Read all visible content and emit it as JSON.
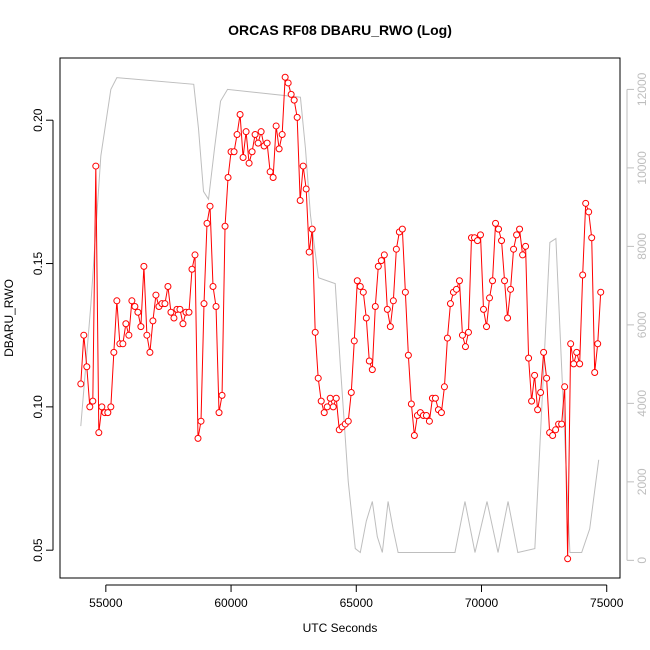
{
  "chart_data": {
    "type": "line",
    "title": "ORCAS RF08 DBARU_RWO (Log)",
    "x_label": "UTC Seconds",
    "y_label": "DBARU_RWO",
    "xlim": [
      53170,
      75530
    ],
    "ylim": [
      0.0403,
      0.2217
    ],
    "y2lim": [
      -450,
      12800
    ],
    "xticks": [
      55000,
      60000,
      65000,
      70000,
      75000
    ],
    "yticks": [
      {
        "value": 0.05,
        "label": "0.05"
      },
      {
        "value": 0.1,
        "label": "0.10"
      },
      {
        "value": 0.15,
        "label": "0.15"
      },
      {
        "value": 0.2,
        "label": "0.20"
      }
    ],
    "y2ticks": [
      0,
      2000,
      4000,
      6000,
      8000,
      10000,
      12000
    ],
    "series": [
      {
        "color": "#ff0000",
        "marker": "circle",
        "x": [
          54000,
          54120,
          54240,
          54360,
          54480,
          54600,
          54720,
          54840,
          54960,
          55080,
          55200,
          55320,
          55440,
          55560,
          55680,
          55800,
          55920,
          56040,
          56160,
          56280,
          56400,
          56520,
          56640,
          56760,
          56880,
          57000,
          57120,
          57240,
          57360,
          57480,
          57600,
          57720,
          57840,
          57960,
          58080,
          58200,
          58320,
          58440,
          58560,
          58680,
          58800,
          58920,
          59040,
          59160,
          59280,
          59400,
          59520,
          59640,
          59760,
          59880,
          60000,
          60120,
          60240,
          60360,
          60480,
          60600,
          60720,
          60840,
          60960,
          61080,
          61200,
          61320,
          61440,
          61560,
          61680,
          61800,
          61920,
          62040,
          62160,
          62280,
          62400,
          62520,
          62640,
          62760,
          62880,
          63000,
          63120,
          63240,
          63360,
          63480,
          63600,
          63720,
          63840,
          63960,
          64080,
          64200,
          64320,
          64440,
          64560,
          64680,
          64800,
          64920,
          65040,
          65160,
          65280,
          65400,
          65520,
          65640,
          65760,
          65880,
          66000,
          66120,
          66240,
          66360,
          66480,
          66600,
          66720,
          66840,
          66960,
          67080,
          67200,
          67320,
          67440,
          67560,
          67680,
          67800,
          67920,
          68040,
          68160,
          68280,
          68400,
          68520,
          68640,
          68760,
          68880,
          69000,
          69120,
          69240,
          69360,
          69480,
          69600,
          69720,
          69840,
          69960,
          70080,
          70200,
          70320,
          70440,
          70560,
          70680,
          70800,
          70920,
          71040,
          71160,
          71280,
          71400,
          71520,
          71640,
          71760,
          71880,
          72000,
          72120,
          72240,
          72360,
          72480,
          72600,
          72720,
          72840,
          72960,
          73080,
          73200,
          73320,
          73440,
          73560,
          73680,
          73800,
          73920,
          74040,
          74160,
          74280,
          74400,
          74520,
          74640,
          74760
        ],
        "values": [
          0.108,
          0.125,
          0.114,
          0.1,
          0.102,
          0.184,
          0.091,
          0.1,
          0.098,
          0.098,
          0.1,
          0.119,
          0.137,
          0.122,
          0.122,
          0.129,
          0.125,
          0.137,
          0.135,
          0.133,
          0.128,
          0.149,
          0.125,
          0.119,
          0.13,
          0.139,
          0.135,
          0.136,
          0.136,
          0.142,
          0.133,
          0.131,
          0.134,
          0.134,
          0.129,
          0.133,
          0.133,
          0.148,
          0.153,
          0.089,
          0.095,
          0.136,
          0.164,
          0.17,
          0.142,
          0.135,
          0.098,
          0.104,
          0.163,
          0.18,
          0.189,
          0.189,
          0.195,
          0.202,
          0.187,
          0.196,
          0.185,
          0.189,
          0.195,
          0.192,
          0.196,
          0.191,
          0.192,
          0.182,
          0.18,
          0.198,
          0.19,
          0.195,
          0.215,
          0.213,
          0.209,
          0.207,
          0.201,
          0.172,
          0.184,
          0.176,
          0.154,
          0.162,
          0.126,
          0.11,
          0.102,
          0.098,
          0.1,
          0.103,
          0.1,
          0.103,
          0.092,
          0.093,
          0.094,
          0.095,
          0.105,
          0.123,
          0.144,
          0.142,
          0.14,
          0.131,
          0.116,
          0.113,
          0.135,
          0.149,
          0.151,
          0.153,
          0.134,
          0.128,
          0.137,
          0.155,
          0.161,
          0.162,
          0.14,
          0.118,
          0.101,
          0.09,
          0.097,
          0.098,
          0.097,
          0.097,
          0.095,
          0.103,
          0.103,
          0.099,
          0.098,
          0.107,
          0.124,
          0.136,
          0.14,
          0.141,
          0.144,
          0.125,
          0.121,
          0.126,
          0.159,
          0.159,
          0.158,
          0.16,
          0.134,
          0.128,
          0.138,
          0.144,
          0.164,
          0.162,
          0.158,
          0.144,
          0.131,
          0.141,
          0.155,
          0.16,
          0.162,
          0.153,
          0.156,
          0.117,
          0.102,
          0.111,
          0.099,
          0.105,
          0.119,
          0.11,
          0.091,
          0.09,
          0.092,
          0.094,
          0.094,
          0.107,
          0.047,
          0.122,
          0.115,
          0.119,
          0.115,
          0.146,
          0.171,
          0.168,
          0.159,
          0.112,
          0.122,
          0.14
        ]
      },
      {
        "color": "#bebebe",
        "axis": "y2",
        "x": [
          54000,
          54400,
          54800,
          55200,
          55440,
          58510,
          58700,
          58900,
          59100,
          59340,
          59580,
          59860,
          62770,
          62970,
          63170,
          63490,
          64160,
          64360,
          64680,
          64960,
          65160,
          65400,
          65640,
          65840,
          66040,
          66270,
          66470,
          66670,
          66870,
          68940,
          69340,
          69740,
          70220,
          70660,
          71060,
          71450,
          72130,
          72730,
          72970,
          73530,
          74000,
          74320,
          74680
        ],
        "values": [
          3420,
          6500,
          10300,
          12000,
          12300,
          12130,
          11000,
          9400,
          9200,
          10500,
          11700,
          12000,
          11800,
          10500,
          8800,
          7200,
          7050,
          5000,
          2000,
          300,
          200,
          1000,
          1500,
          600,
          200,
          1500,
          800,
          200,
          200,
          200,
          1500,
          200,
          1500,
          200,
          1500,
          200,
          300,
          8100,
          8200,
          200,
          200,
          800,
          2560
        ]
      }
    ]
  }
}
